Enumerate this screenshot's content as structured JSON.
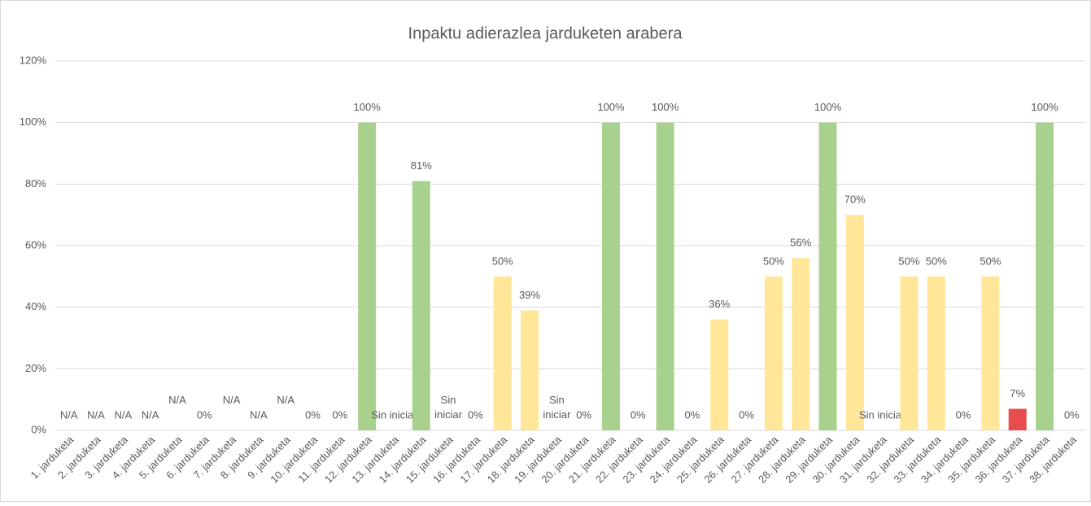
{
  "chart_data": {
    "type": "bar",
    "title": "Inpaktu adierazlea jarduketen arabera",
    "categories": [
      "1. jarduketa",
      "2. jarduketa",
      "3. jarduketa",
      "4. jarduketa",
      "5. jarduketa",
      "6. jarduketa",
      "7. jarduketa",
      "8. jarduketa",
      "9. jarduketa",
      "10. jarduketa",
      "11. jarduketa",
      "12. jarduketa",
      "13. jarduketa",
      "14. jarduketa",
      "15. jarduketa",
      "16. jarduketa",
      "17. jarduketa",
      "18. jarduketa",
      "19. jarduketa",
      "20. jarduketa",
      "21. jarduketa",
      "22. jarduketa",
      "23. jarduketa",
      "24. jarduketa",
      "25. jarduketa",
      "26. jarduketa",
      "27. jarduketa",
      "28. jarduketa",
      "29. jarduketa",
      "30. jarduketa",
      "31. jarduketa",
      "32. jarduketa",
      "33. jarduketa",
      "34. jarduketa",
      "35. jarduketa",
      "36. jarduketa",
      "37. jarduketa",
      "38. jarduketa"
    ],
    "values": [
      null,
      null,
      null,
      null,
      null,
      0,
      null,
      null,
      null,
      0,
      0,
      100,
      null,
      81,
      null,
      0,
      50,
      39,
      null,
      0,
      100,
      0,
      100,
      0,
      36,
      0,
      50,
      56,
      100,
      70,
      null,
      50,
      50,
      0,
      50,
      7,
      100,
      0
    ],
    "value_labels": [
      "N/A",
      "N/A",
      "N/A",
      "N/A",
      "N/A",
      "0%",
      "N/A",
      "N/A",
      "N/A",
      "0%",
      "0%",
      "100%",
      "Sin iniciar",
      "81%",
      "Sin iniciar",
      "0%",
      "50%",
      "39%",
      "Sin iniciar",
      "0%",
      "100%",
      "0%",
      "100%",
      "0%",
      "36%",
      "0%",
      "50%",
      "56%",
      "100%",
      "70%",
      "Sin iniciar",
      "50%",
      "50%",
      "0%",
      "50%",
      "7%",
      "100%",
      "0%"
    ],
    "colors": [
      "#a9d18e",
      "#a9d18e",
      "#a9d18e",
      "#a9d18e",
      "#a9d18e",
      "#ffe699",
      "#a9d18e",
      "#a9d18e",
      "#a9d18e",
      "#ffe699",
      "#ffe699",
      "#a9d18e",
      "#ffe699",
      "#a9d18e",
      "#ffe699",
      "#ffe699",
      "#ffe699",
      "#ffe699",
      "#ffe699",
      "#ffe699",
      "#a9d18e",
      "#ffe699",
      "#a9d18e",
      "#ffe699",
      "#ffe699",
      "#ffe699",
      "#ffe699",
      "#ffe699",
      "#a9d18e",
      "#ffe699",
      "#ffe699",
      "#ffe699",
      "#ffe699",
      "#ffe699",
      "#ffe699",
      "#e84c4c",
      "#a9d18e",
      "#ffe699"
    ],
    "ylim": [
      0,
      120
    ],
    "yticks": [
      {
        "value": 0,
        "label": "0%"
      },
      {
        "value": 20,
        "label": "20%"
      },
      {
        "value": 40,
        "label": "40%"
      },
      {
        "value": 60,
        "label": "60%"
      },
      {
        "value": 80,
        "label": "80%"
      },
      {
        "value": 100,
        "label": "100%"
      },
      {
        "value": 120,
        "label": "120%"
      }
    ],
    "grid": true
  }
}
